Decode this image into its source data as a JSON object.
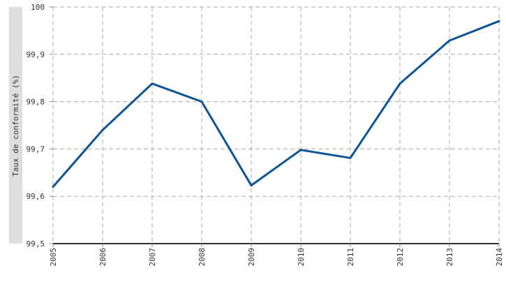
{
  "chart_data": {
    "type": "line",
    "x": [
      "2005",
      "2006",
      "2007",
      "2008",
      "2009",
      "2010",
      "2011",
      "2012",
      "2013",
      "2014"
    ],
    "series": [
      {
        "values": [
          99.62,
          99.74,
          99.838,
          99.8,
          99.623,
          99.698,
          99.681,
          99.838,
          99.929,
          99.97
        ]
      }
    ],
    "ylabel": "Taux de conformité (%)",
    "xlabel": "",
    "ylim": [
      99.5,
      100
    ],
    "yticks": [
      "99,5",
      "99,6",
      "99,7",
      "99,8",
      "99,9",
      "100"
    ],
    "grid": true,
    "line_color": "#0b5394",
    "grid_color": "#aaaaaa",
    "ylabel_band_color": "#dedede"
  }
}
